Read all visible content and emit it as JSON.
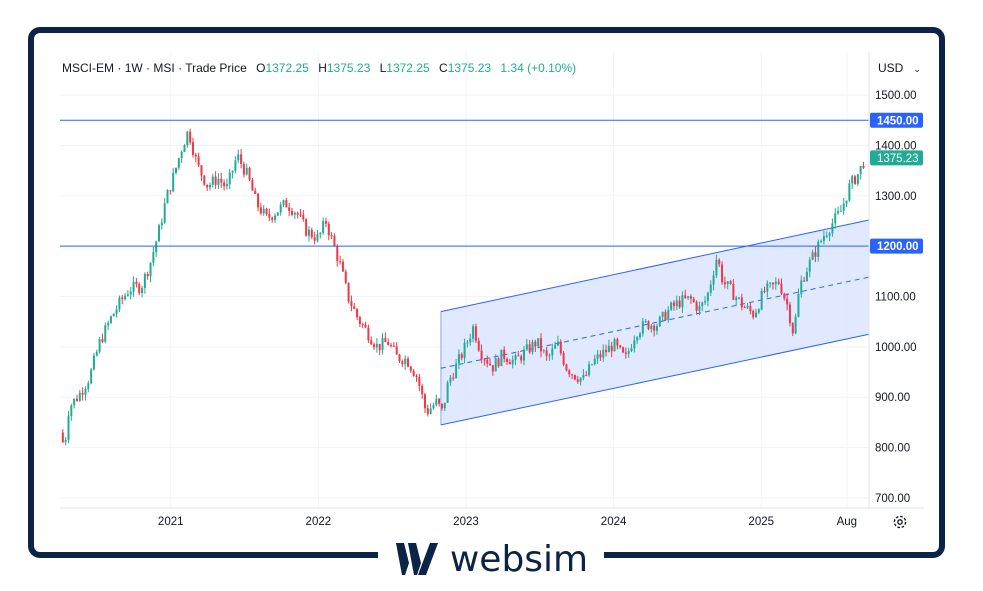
{
  "legend": {
    "symbol": "MSCI-EM",
    "interval": "1W",
    "source": "MSI",
    "price_type": "Trade Price",
    "o_label": "O",
    "o_value": "1372.25",
    "h_label": "H",
    "h_value": "1375.23",
    "l_label": "L",
    "l_value": "1372.25",
    "c_label": "C",
    "c_value": "1375.23",
    "change": "1.34 (+0.10%)"
  },
  "currency": "USD",
  "brand": {
    "name": "websim"
  },
  "colors": {
    "up": "#22ab94",
    "down": "#f23645",
    "line": "#2962ff",
    "channel_fill": "#dbe5ff",
    "frame": "#0b2346"
  },
  "chart_data": {
    "type": "candlestick",
    "ylim": [
      680,
      1530
    ],
    "y_ticks": [
      700,
      800,
      900,
      1000,
      1100,
      1200,
      1300,
      1400,
      1500
    ],
    "y_tick_labels": [
      "700.00",
      "800.00",
      "900.00",
      "1000.00",
      "1100.00",
      "1200.00",
      "1300.00",
      "1400.00",
      "1500.00"
    ],
    "x_range": [
      2020.25,
      2025.73
    ],
    "x_ticks": [
      {
        "x": 2021.0,
        "label": "2021"
      },
      {
        "x": 2022.0,
        "label": "2022"
      },
      {
        "x": 2023.0,
        "label": "2023"
      },
      {
        "x": 2024.0,
        "label": "2024"
      },
      {
        "x": 2025.0,
        "label": "2025"
      },
      {
        "x": 2025.58,
        "label": "Aug"
      }
    ],
    "horizontal_lines": [
      {
        "value": 1450,
        "label": "1450.00"
      },
      {
        "value": 1200,
        "label": "1200.00"
      }
    ],
    "last_price": {
      "value": 1375.23,
      "label": "1375.23"
    },
    "channel": {
      "start": {
        "x": 2022.83,
        "lower": 845,
        "upper": 1070
      },
      "end": {
        "x": 2025.73,
        "lower": 1025,
        "upper": 1252
      }
    },
    "path": [
      [
        2020.25,
        830
      ],
      [
        2020.28,
        800
      ],
      [
        2020.31,
        880
      ],
      [
        2020.38,
        905
      ],
      [
        2020.45,
        940
      ],
      [
        2020.52,
        1010
      ],
      [
        2020.6,
        1060
      ],
      [
        2020.66,
        1090
      ],
      [
        2020.72,
        1115
      ],
      [
        2020.8,
        1120
      ],
      [
        2020.86,
        1165
      ],
      [
        2020.92,
        1230
      ],
      [
        2020.97,
        1295
      ],
      [
        2021.02,
        1340
      ],
      [
        2021.08,
        1400
      ],
      [
        2021.12,
        1430
      ],
      [
        2021.18,
        1360
      ],
      [
        2021.25,
        1320
      ],
      [
        2021.32,
        1335
      ],
      [
        2021.38,
        1315
      ],
      [
        2021.45,
        1380
      ],
      [
        2021.52,
        1340
      ],
      [
        2021.58,
        1285
      ],
      [
        2021.65,
        1255
      ],
      [
        2021.72,
        1270
      ],
      [
        2021.78,
        1285
      ],
      [
        2021.85,
        1268
      ],
      [
        2021.92,
        1230
      ],
      [
        2022.0,
        1215
      ],
      [
        2022.05,
        1250
      ],
      [
        2022.1,
        1205
      ],
      [
        2022.15,
        1160
      ],
      [
        2022.2,
        1100
      ],
      [
        2022.27,
        1055
      ],
      [
        2022.33,
        1030
      ],
      [
        2022.4,
        1000
      ],
      [
        2022.47,
        1010
      ],
      [
        2022.53,
        980
      ],
      [
        2022.6,
        975
      ],
      [
        2022.67,
        940
      ],
      [
        2022.73,
        870
      ],
      [
        2022.8,
        890
      ],
      [
        2022.84,
        870
      ],
      [
        2022.88,
        930
      ],
      [
        2022.93,
        960
      ],
      [
        2022.98,
        990
      ],
      [
        2023.05,
        1040
      ],
      [
        2023.1,
        990
      ],
      [
        2023.18,
        960
      ],
      [
        2023.25,
        985
      ],
      [
        2023.33,
        970
      ],
      [
        2023.4,
        990
      ],
      [
        2023.48,
        1010
      ],
      [
        2023.55,
        975
      ],
      [
        2023.62,
        1005
      ],
      [
        2023.68,
        960
      ],
      [
        2023.73,
        945
      ],
      [
        2023.8,
        935
      ],
      [
        2023.86,
        970
      ],
      [
        2023.92,
        985
      ],
      [
        2024.0,
        1005
      ],
      [
        2024.08,
        975
      ],
      [
        2024.15,
        1030
      ],
      [
        2024.22,
        1045
      ],
      [
        2024.3,
        1045
      ],
      [
        2024.38,
        1075
      ],
      [
        2024.45,
        1090
      ],
      [
        2024.52,
        1095
      ],
      [
        2024.58,
        1075
      ],
      [
        2024.63,
        1095
      ],
      [
        2024.7,
        1180
      ],
      [
        2024.74,
        1130
      ],
      [
        2024.8,
        1110
      ],
      [
        2024.88,
        1080
      ],
      [
        2024.95,
        1065
      ],
      [
        2025.02,
        1110
      ],
      [
        2025.08,
        1120
      ],
      [
        2025.12,
        1130
      ],
      [
        2025.18,
        1080
      ],
      [
        2025.22,
        1025
      ],
      [
        2025.26,
        1120
      ],
      [
        2025.3,
        1150
      ],
      [
        2025.36,
        1185
      ],
      [
        2025.42,
        1220
      ],
      [
        2025.48,
        1245
      ],
      [
        2025.54,
        1270
      ],
      [
        2025.6,
        1320
      ],
      [
        2025.66,
        1345
      ],
      [
        2025.7,
        1372
      ]
    ]
  }
}
